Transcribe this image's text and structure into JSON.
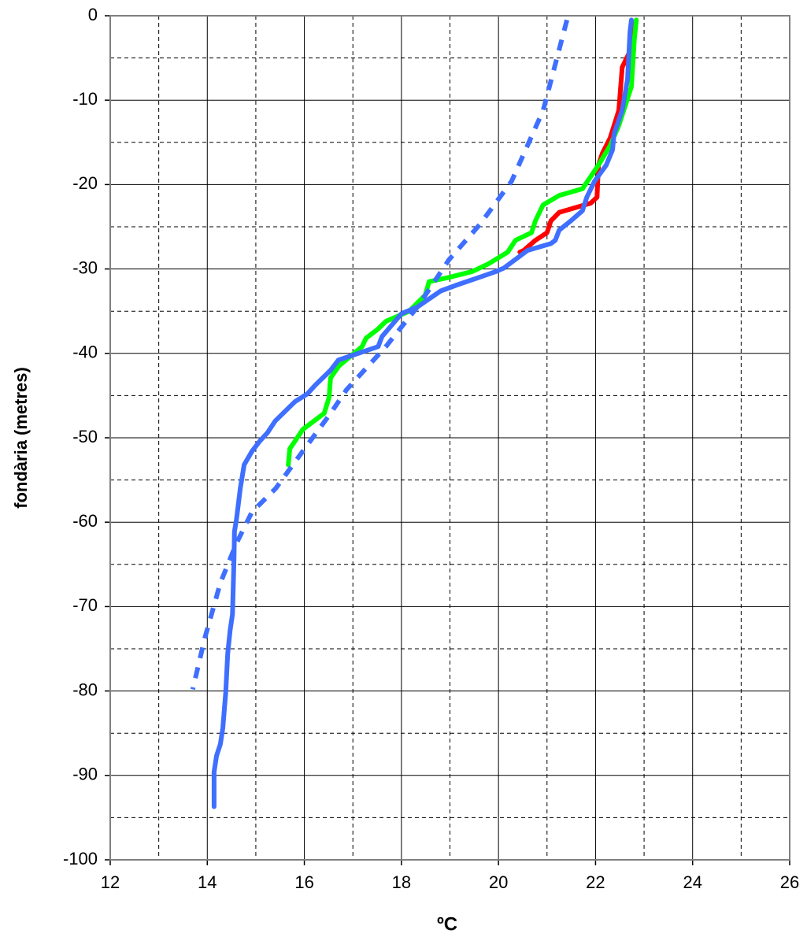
{
  "chart_data": {
    "type": "line",
    "x_label": "ºC",
    "y_label": "fondària (metres)",
    "xlim": [
      12,
      26
    ],
    "xticks": [
      12,
      14,
      16,
      18,
      20,
      22,
      24,
      26
    ],
    "xminorticks": [
      13,
      15,
      17,
      19,
      21,
      23,
      25
    ],
    "ylim": [
      -100,
      0
    ],
    "yticks": [
      -100,
      -90,
      -80,
      -70,
      -60,
      -50,
      -40,
      -30,
      -20,
      -10,
      0
    ],
    "yminorticks": [
      -95,
      -85,
      -75,
      -65,
      -55,
      -45,
      -35,
      -25,
      -15,
      -5
    ],
    "grid": true,
    "series": [
      {
        "color": "#ff0000",
        "dash": false,
        "x": [
          22.84,
          22.71,
          22.55,
          22.48,
          22.3,
          22.14,
          22.06,
          22.03,
          21.9,
          21.25,
          21.08,
          21.0,
          20.76,
          20.52,
          20.44
        ],
        "values": [
          -0.5,
          -4.2,
          -6.1,
          -11.2,
          -14.5,
          -16.3,
          -17.7,
          -21.5,
          -22.2,
          -23.3,
          -24.3,
          -25.7,
          -26.6,
          -27.8,
          -28
        ]
      },
      {
        "color": "#00ff00",
        "dash": false,
        "x": [
          22.84,
          22.8,
          22.74,
          22.48,
          22.3,
          22.06,
          21.73,
          21.25,
          20.92,
          20.76,
          20.68,
          20.35,
          20.19,
          19.79,
          19.46,
          18.98,
          18.57,
          18.49,
          18.16,
          17.68,
          17.52,
          17.27,
          17.19,
          16.71,
          16.54,
          16.51,
          16.41,
          15.97,
          15.7,
          15.67
        ],
        "values": [
          -0.5,
          -2.8,
          -8.4,
          -13,
          -15.4,
          -17.7,
          -20.5,
          -21.3,
          -22.4,
          -24.3,
          -25.7,
          -26.6,
          -28,
          -29.4,
          -30.3,
          -31,
          -31.5,
          -33.1,
          -35,
          -36.2,
          -37.1,
          -38.2,
          -39.2,
          -41.5,
          -42.9,
          -45.2,
          -47.1,
          -49,
          -51.3,
          -53.2
        ]
      },
      {
        "color": "#3f6fff",
        "dash": true,
        "x": [
          21.41,
          20.92,
          20.27,
          19.62,
          18.98,
          18.33,
          17.68,
          16.87,
          16.54,
          15.89,
          15.41,
          14.92,
          14.6,
          14.27,
          13.95,
          13.7
        ],
        "values": [
          -0.5,
          -11.2,
          -19.6,
          -24.7,
          -28.9,
          -34.5,
          -39.2,
          -44.3,
          -47.1,
          -52.2,
          -56,
          -58.8,
          -62.5,
          -67.2,
          -73.7,
          -79.8
        ]
      },
      {
        "color": "#3f6fff",
        "dash": false,
        "x": [
          22.74,
          22.71,
          22.66,
          22.55,
          22.38,
          22.35,
          22.22,
          21.98,
          21.82,
          21.73,
          21.49,
          21.25,
          21.17,
          21.08,
          20.6,
          20.11,
          19.95,
          19.6,
          19.14,
          18.81,
          18.33,
          18.0,
          17.6,
          17.52,
          16.7,
          16.54,
          16.22,
          16.06,
          15.81,
          15.4,
          15.24,
          15.08,
          14.92,
          14.76,
          14.68,
          14.6,
          14.56,
          14.55,
          14.52,
          14.47,
          14.42,
          14.38,
          14.32,
          14.27,
          14.19,
          14.14,
          14.14
        ],
        "values": [
          -0.5,
          -1.9,
          -7.5,
          -11.2,
          -14,
          -15.9,
          -17.7,
          -19.6,
          -21.5,
          -23.1,
          -24.3,
          -25.4,
          -26.6,
          -27,
          -27.8,
          -29.9,
          -30.3,
          -31,
          -31.9,
          -32.6,
          -34.5,
          -35.3,
          -38,
          -39.2,
          -40.8,
          -42,
          -43.8,
          -44.8,
          -45.7,
          -48,
          -49.4,
          -50.4,
          -51.6,
          -53.2,
          -56,
          -59.7,
          -61.1,
          -64.4,
          -70.9,
          -72.8,
          -75.6,
          -80.2,
          -84.4,
          -86.3,
          -87.7,
          -89.6,
          -93.7
        ]
      }
    ]
  }
}
